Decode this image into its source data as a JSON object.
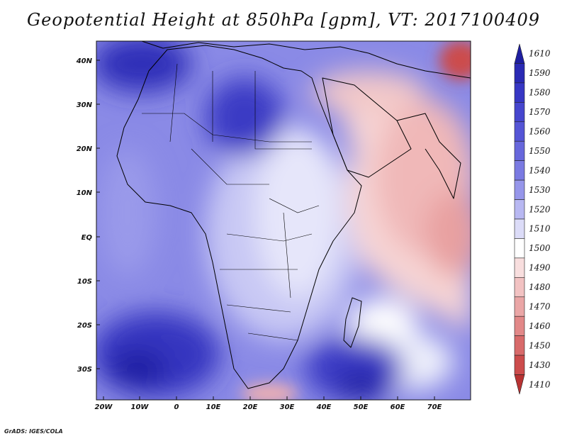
{
  "title": "Geopotential Height at 850hPa [gpm], VT: 2017100409",
  "credit": "GrADS: IGES/COLA",
  "lat_labels": [
    "40N",
    "30N",
    "20N",
    "10N",
    "EQ",
    "10S",
    "20S",
    "30S"
  ],
  "lon_labels": [
    "20W",
    "10W",
    "0",
    "10E",
    "20E",
    "30E",
    "40E",
    "50E",
    "60E",
    "70E"
  ],
  "colorbar": {
    "levels": [
      "1610",
      "1590",
      "1580",
      "1570",
      "1560",
      "1550",
      "1540",
      "1530",
      "1520",
      "1510",
      "1500",
      "1490",
      "1480",
      "1470",
      "1460",
      "1450",
      "1430",
      "1410"
    ],
    "colors": [
      "#1e1ea0",
      "#2a2ab4",
      "#3737c4",
      "#4646ce",
      "#5555d6",
      "#6767dc",
      "#7a7ae2",
      "#9696ea",
      "#b8b8f2",
      "#dcdcf8",
      "#ffffff",
      "#f8dede",
      "#f2c2c2",
      "#eaa6a6",
      "#e28888",
      "#d86a6a",
      "#cc4c4c",
      "#b83232"
    ]
  },
  "colors": {
    "frame": "#111111",
    "coast": "#000000"
  }
}
